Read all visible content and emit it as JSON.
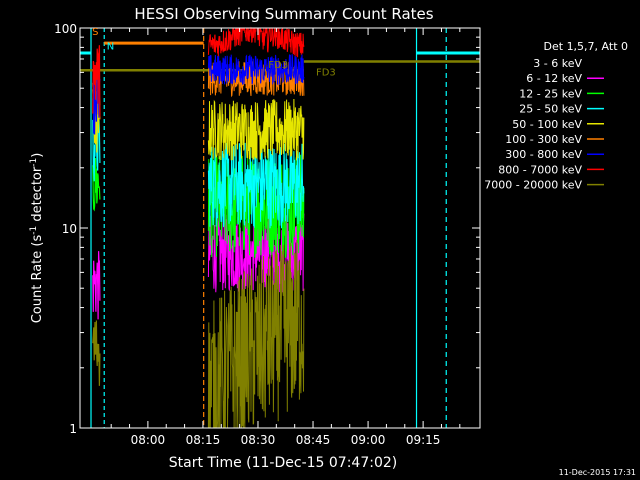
{
  "chart_data": {
    "type": "line",
    "title": "HESSI Observing Summary Count Rates",
    "xlabel": "Start Time (11-Dec-15 07:47:02)",
    "ylabel": "Count Rate (s⁻¹ detector⁻¹)",
    "ylabel_main": "Count Rate (s",
    "ylabel_sup1": "-1",
    "ylabel_mid": " detector",
    "ylabel_sup2": "-1",
    "ylabel_end": ")",
    "yscale": "log",
    "ylim": [
      1,
      100
    ],
    "xlim_minutes": [
      -18.5,
      90.5
    ],
    "x_ticks": [
      {
        "label": "08:00",
        "min": 0
      },
      {
        "label": "08:15",
        "min": 15
      },
      {
        "label": "08:30",
        "min": 30
      },
      {
        "label": "08:45",
        "min": 45
      },
      {
        "label": "09:00",
        "min": 60
      },
      {
        "label": "09:15",
        "min": 75
      }
    ],
    "y_ticks": [
      {
        "label": "100",
        "value": 100
      },
      {
        "label": "10",
        "value": 10
      },
      {
        "label": "1",
        "value": 1
      }
    ],
    "legend_title": "Det 1,5,7, Att 0",
    "legend_position": "right",
    "series": [
      {
        "name": "3 - 6 keV",
        "color": "#000000",
        "level": 19.5,
        "noise": 0.07,
        "early": 30
      },
      {
        "name": "6 - 12 keV",
        "color": "#ff00ff",
        "level": 7.5,
        "noise": 0.09,
        "early": 5.5
      },
      {
        "name": "12 - 25 keV",
        "color": "#00ff00",
        "level": 13.0,
        "noise": 0.12,
        "early": 17
      },
      {
        "name": "25 - 50 keV",
        "color": "#00ffff",
        "level": 16.5,
        "noise": 0.1,
        "early": 27
      },
      {
        "name": "50 - 100 keV",
        "color": "#e6e600",
        "level": 31.0,
        "noise": 0.07,
        "early": 36
      },
      {
        "name": "100 - 300 keV",
        "color": "#ff8000",
        "level": 56.0,
        "noise": 0.04,
        "early": 44
      },
      {
        "name": "300 - 800 keV",
        "color": "#0000ff",
        "level": 62.0,
        "noise": 0.035,
        "early": 47
      },
      {
        "name": "800 - 7000 keV",
        "color": "#ff0000",
        "level": 82.0,
        "noise": 0.03,
        "early": 60
      },
      {
        "name": "7000 - 20000 keV",
        "color": "#808000",
        "level": 2.2,
        "noise": 0.2,
        "early": 2.6
      }
    ],
    "flags": [
      {
        "label": "S",
        "color": "#ff8000"
      },
      {
        "label": "N",
        "color": "#00ffff"
      },
      {
        "label": "FD3",
        "color": "#808000"
      },
      {
        "label": "FD3",
        "color": "#808000"
      }
    ],
    "timestamp": "11-Dec-2015 17:31"
  }
}
